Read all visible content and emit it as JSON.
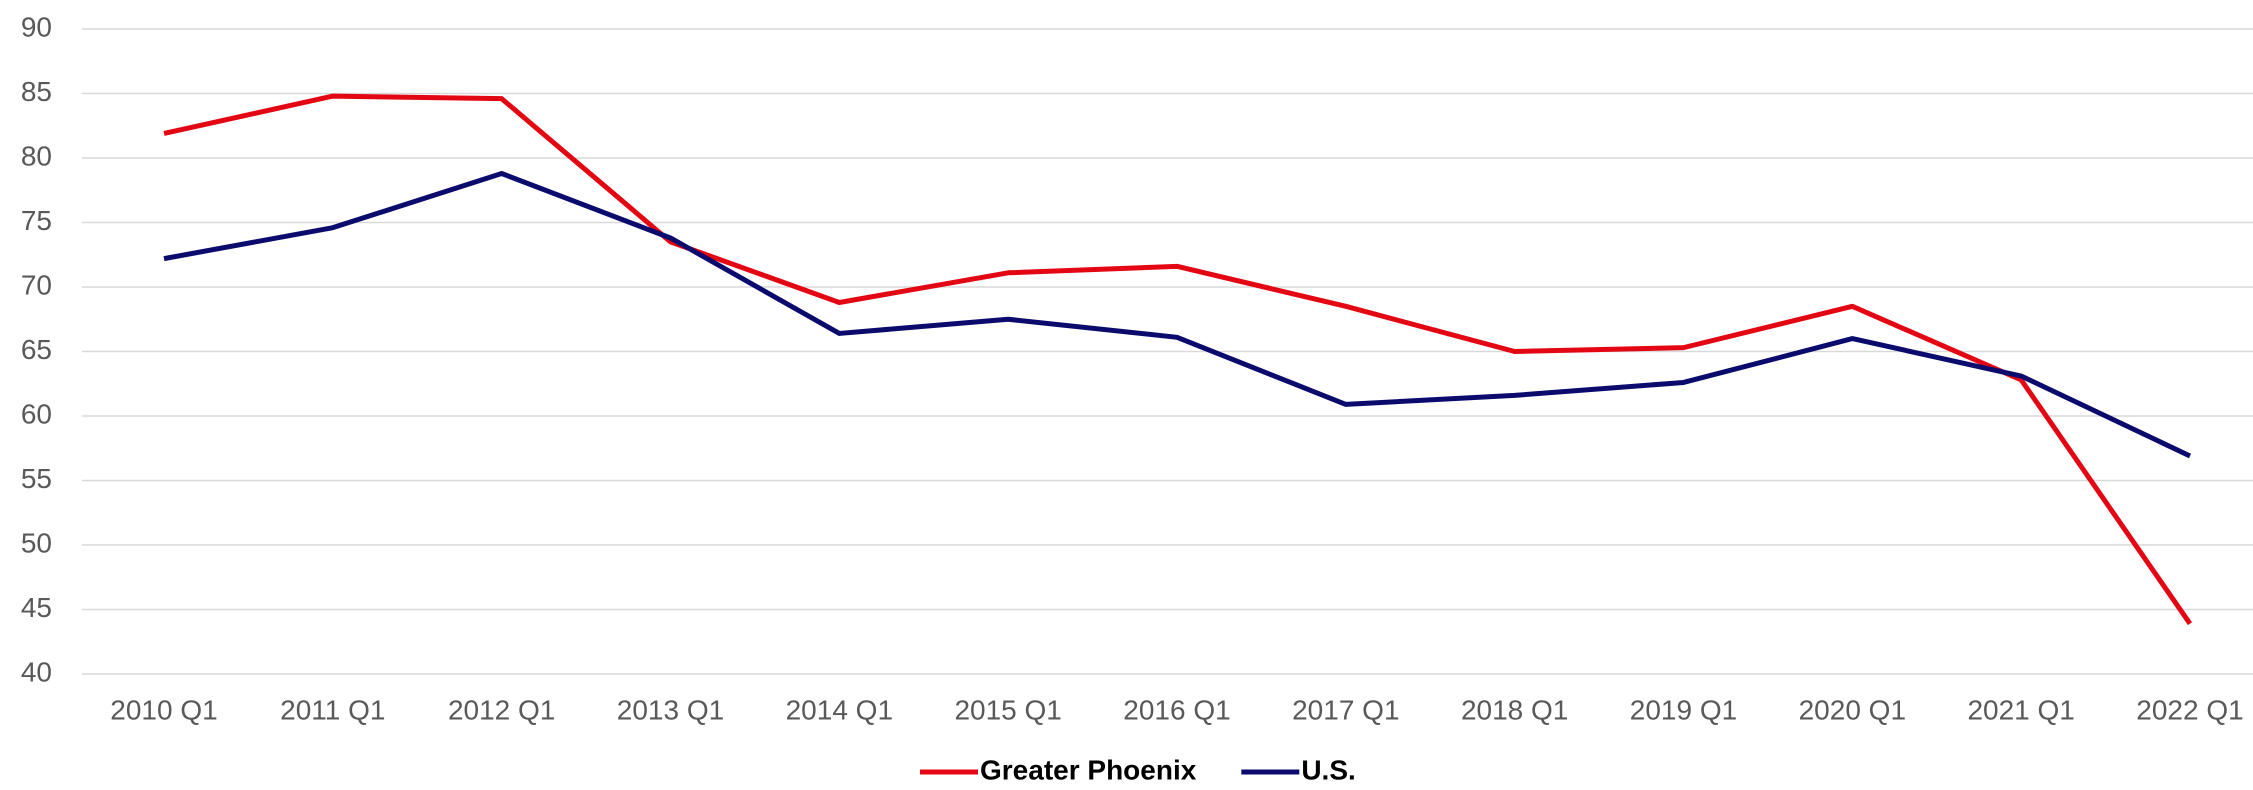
{
  "chart_data": {
    "type": "line",
    "categories": [
      "2010 Q1",
      "2011 Q1",
      "2012 Q1",
      "2013 Q1",
      "2014 Q1",
      "2015 Q1",
      "2016 Q1",
      "2017 Q1",
      "2018 Q1",
      "2019 Q1",
      "2020 Q1",
      "2021 Q1",
      "2022 Q1"
    ],
    "series": [
      {
        "name": "Greater Phoenix",
        "color": "#e30613",
        "values": [
          81.9,
          84.8,
          84.6,
          73.5,
          68.8,
          71.1,
          71.6,
          68.5,
          65.0,
          65.3,
          68.5,
          62.8,
          43.9
        ]
      },
      {
        "name": "U.S.",
        "color": "#0b0b6e",
        "values": [
          72.2,
          74.6,
          78.8,
          73.8,
          66.4,
          67.5,
          66.1,
          60.9,
          61.6,
          62.6,
          66.0,
          63.1,
          56.9
        ]
      }
    ],
    "ylim": [
      40,
      90
    ],
    "yticks": [
      40,
      45,
      50,
      55,
      60,
      65,
      70,
      75,
      80,
      85,
      90
    ],
    "grid": true,
    "legend": "bottom"
  }
}
